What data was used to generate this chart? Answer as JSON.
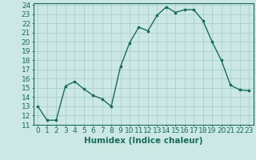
{
  "x": [
    0,
    1,
    2,
    3,
    4,
    5,
    6,
    7,
    8,
    9,
    10,
    11,
    12,
    13,
    14,
    15,
    16,
    17,
    18,
    19,
    20,
    21,
    22,
    23
  ],
  "y": [
    13,
    11.5,
    11.5,
    15.2,
    15.7,
    14.9,
    14.2,
    13.8,
    13.0,
    17.3,
    19.9,
    21.6,
    21.2,
    22.9,
    23.8,
    23.2,
    23.5,
    23.5,
    22.3,
    20.0,
    18.0,
    15.3,
    14.8,
    14.7
  ],
  "line_color": "#1a6b5a",
  "bg_color": "#cce8e4",
  "grid_color": "#aacfcb",
  "xlabel": "Humidex (Indice chaleur)",
  "xlim": [
    -0.5,
    23.5
  ],
  "ylim": [
    11,
    24.2
  ],
  "yticks": [
    11,
    12,
    13,
    14,
    15,
    16,
    17,
    18,
    19,
    20,
    21,
    22,
    23,
    24
  ],
  "xtick_labels": [
    "0",
    "1",
    "2",
    "3",
    "4",
    "5",
    "6",
    "7",
    "8",
    "9",
    "10",
    "11",
    "12",
    "13",
    "14",
    "15",
    "16",
    "17",
    "18",
    "19",
    "20",
    "21",
    "22",
    "23"
  ],
  "marker": "s",
  "marker_size": 1.8,
  "line_width": 1.0,
  "xlabel_fontsize": 7.5,
  "tick_fontsize": 6.5
}
